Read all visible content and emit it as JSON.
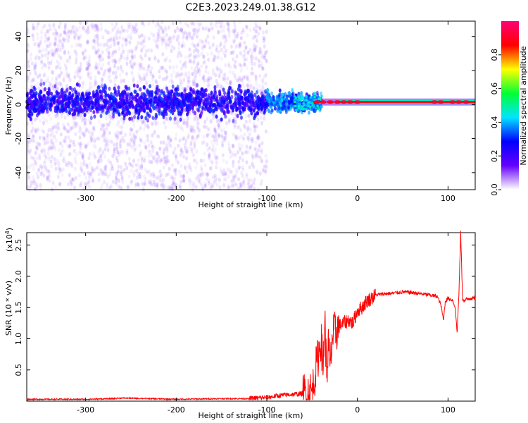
{
  "title": "C2E3.2023.249.01.38.G12",
  "chart_data": [
    {
      "type": "heatmap",
      "xlabel": "Height of straight line (km)",
      "ylabel": "Frequency (Hz)",
      "xlim": [
        -365,
        130
      ],
      "ylim": [
        -50,
        49
      ],
      "xticks": [
        -300,
        -200,
        -100,
        0,
        100
      ],
      "xtick_labels": [
        "-300",
        "-200",
        "-100",
        "0",
        "100"
      ],
      "yticks": [
        -40,
        -20,
        0,
        20,
        40
      ],
      "ytick_labels": [
        "-40",
        "-20",
        "0",
        "20",
        "40"
      ],
      "colorbar": {
        "label": "Normalized spectral amplitude",
        "range": [
          0,
          1
        ],
        "ticks": [
          0.0,
          0.2,
          0.4,
          0.6,
          0.8
        ],
        "tick_labels": [
          "0.0",
          "0.2",
          "0.4",
          "0.6",
          "0.8"
        ],
        "colormap": [
          "#ffffff",
          "#6600ff",
          "#0000ff",
          "#00e5ff",
          "#00ff33",
          "#ffff00",
          "#ff0000",
          "#ff0077"
        ]
      },
      "grid": false,
      "description_values": {
        "noise_region_x": [
          -365,
          -110
        ],
        "noise_band_halfwidth_hz": 12,
        "transition_x": [
          -110,
          -40
        ],
        "signal_center_hz": 1.5,
        "signal_x": [
          -40,
          130
        ]
      }
    },
    {
      "type": "line",
      "xlabel": "Height of straight line (km)",
      "ylabel": "SNR (10 * v/v)",
      "y_multiplier_label": "(x10^4)",
      "xlim": [
        -365,
        130
      ],
      "ylim": [
        0,
        2.7
      ],
      "xticks": [
        -300,
        -200,
        -100,
        0,
        100
      ],
      "xtick_labels": [
        "-300",
        "-200",
        "-100",
        "0",
        "100"
      ],
      "yticks": [
        0.5,
        1.0,
        1.5,
        2.0,
        2.5
      ],
      "ytick_labels": [
        "0.5",
        "1.0",
        "1.5",
        "2.0",
        "2.5"
      ],
      "color": "#ff0000",
      "series": [
        {
          "x": [
            -365,
            -300,
            -270,
            -260,
            -200,
            -150,
            -120,
            -100,
            -80,
            -60,
            -50,
            -45,
            -40,
            -38,
            -36,
            -34,
            -32,
            -30,
            -28,
            -25,
            -20,
            -15,
            -10,
            -5,
            0,
            5,
            10,
            15,
            20,
            30,
            40,
            50,
            60,
            70,
            80,
            88,
            92,
            95,
            97,
            100,
            105,
            108,
            110,
            112,
            114,
            116,
            118,
            120,
            125,
            130
          ],
          "y": [
            0.03,
            0.03,
            0.04,
            0.05,
            0.03,
            0.04,
            0.04,
            0.06,
            0.1,
            0.12,
            0.15,
            0.6,
            1.0,
            0.5,
            1.35,
            0.4,
            0.9,
            0.5,
            1.0,
            1.1,
            1.2,
            1.25,
            1.3,
            1.25,
            1.45,
            1.5,
            1.6,
            1.65,
            1.7,
            1.72,
            1.73,
            1.75,
            1.74,
            1.72,
            1.7,
            1.68,
            1.55,
            1.3,
            1.6,
            1.65,
            1.62,
            1.5,
            1.1,
            1.7,
            2.7,
            1.65,
            1.6,
            1.63,
            1.65,
            1.65
          ]
        }
      ]
    }
  ]
}
